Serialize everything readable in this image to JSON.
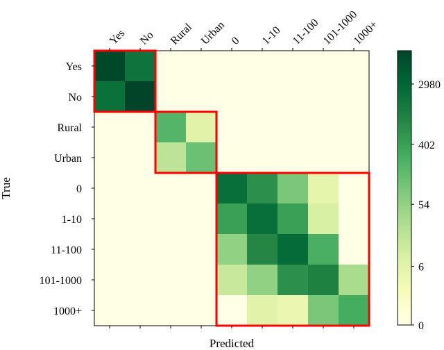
{
  "chart_data": {
    "type": "heatmap",
    "xlabel": "Predicted",
    "ylabel": "True",
    "x_categories": [
      "Yes",
      "No",
      "Rural",
      "Urban",
      "0",
      "1-10",
      "11-100",
      "101-1000",
      "1000+"
    ],
    "y_categories": [
      "Yes",
      "No",
      "Rural",
      "Urban",
      "0",
      "1-10",
      "11-100",
      "101-1000",
      "1000+"
    ],
    "values": [
      [
        8102,
        1807,
        0,
        0,
        0,
        0,
        0,
        0,
        0
      ],
      [
        1998,
        8955,
        0,
        0,
        0,
        0,
        0,
        0,
        0
      ],
      [
        0,
        0,
        199,
        6,
        0,
        0,
        0,
        0,
        0
      ],
      [
        0,
        0,
        19,
        121,
        0,
        0,
        0,
        0,
        0
      ],
      [
        0,
        0,
        0,
        0,
        2208,
        664,
        89,
        5,
        0
      ],
      [
        0,
        0,
        0,
        0,
        402,
        2208,
        402,
        9,
        0
      ],
      [
        0,
        0,
        0,
        0,
        54,
        897,
        2440,
        244,
        0
      ],
      [
        0,
        0,
        0,
        0,
        14,
        54,
        664,
        1096,
        32
      ],
      [
        0,
        0,
        0,
        0,
        0,
        6,
        4,
        89,
        269
      ]
    ],
    "colorbar": {
      "scale": "log(1+x)",
      "ticks": [
        0,
        6,
        54,
        402,
        2980
      ],
      "tick_labels": [
        "0",
        "6",
        "54",
        "402",
        "2980"
      ],
      "range": [
        0,
        9000
      ],
      "colormap": [
        "#ffffe5",
        "#f7fcb9",
        "#d9f0a3",
        "#addd8e",
        "#78c679",
        "#41ab5d",
        "#238443",
        "#006837",
        "#004529"
      ]
    },
    "groups": [
      [
        0,
        1
      ],
      [
        2,
        3
      ],
      [
        4,
        8
      ]
    ],
    "group_outline_color": "#ff0000"
  }
}
